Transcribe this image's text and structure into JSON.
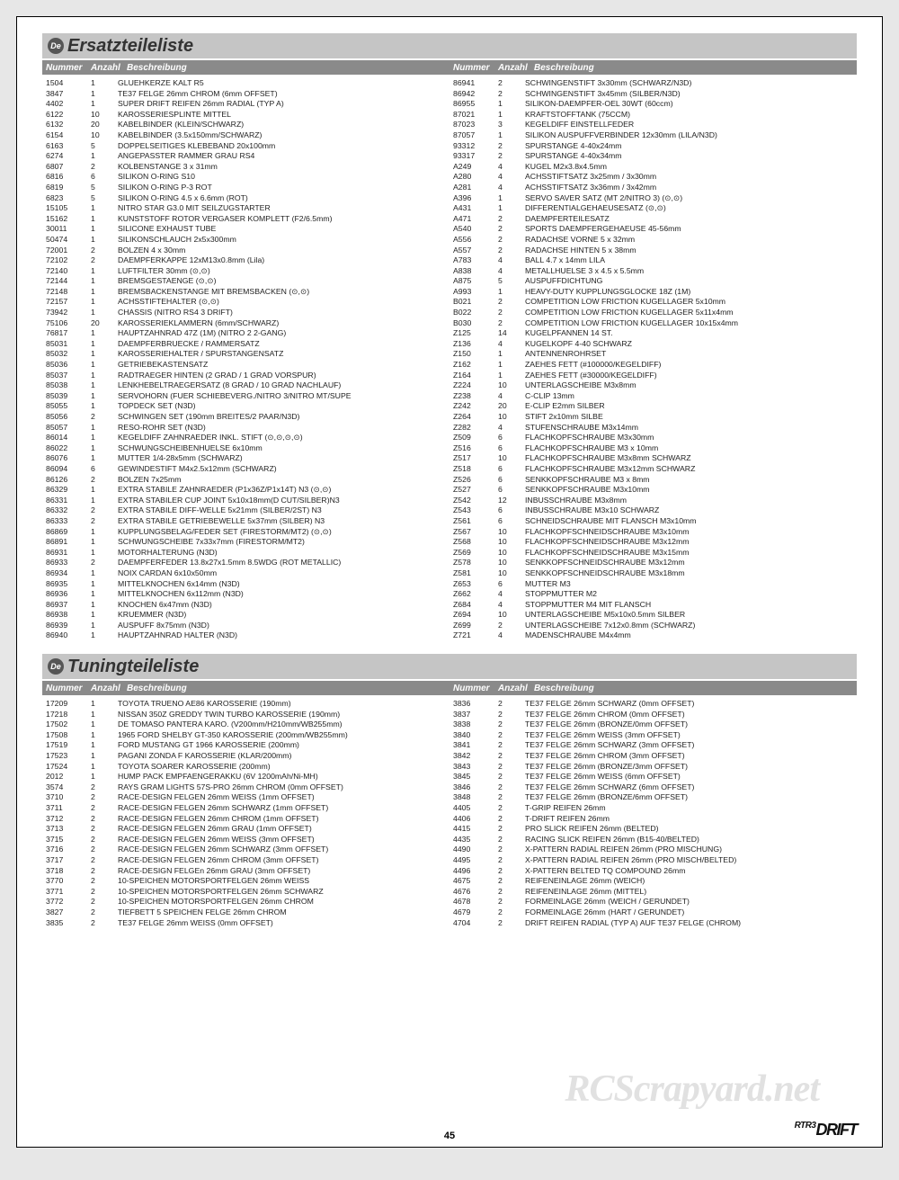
{
  "page_number": "45",
  "watermark": "RCScrapyard.net",
  "logo_small": "RTR3",
  "logo_main": "DRIFT",
  "sections": [
    {
      "badge": "De",
      "title": "Ersatzteileliste",
      "headers": {
        "num": "Nummer",
        "qty": "Anzahl",
        "desc": "Beschreibung"
      },
      "left": [
        [
          "1504",
          "1",
          "GLUEHKERZE KALT R5"
        ],
        [
          "3847",
          "1",
          "TE37 FELGE 26mm CHROM (6mm OFFSET)"
        ],
        [
          "4402",
          "1",
          "SUPER DRIFT REIFEN 26mm RADIAL (TYP A)"
        ],
        [
          "6122",
          "10",
          "KAROSSERIESPLINTE MITTEL"
        ],
        [
          "6132",
          "20",
          "KABELBINDER (KLEIN/SCHWARZ)"
        ],
        [
          "6154",
          "10",
          "KABELBINDER (3.5x150mm/SCHWARZ)"
        ],
        [
          "6163",
          "5",
          "DOPPELSEITIGES KLEBEBAND 20x100mm"
        ],
        [
          "6274",
          "1",
          "ANGEPASSTER RAMMER GRAU RS4"
        ],
        [
          "6807",
          "2",
          "KOLBENSTANGE 3 x 31mm"
        ],
        [
          "6816",
          "6",
          "SILIKON O-RING S10"
        ],
        [
          "6819",
          "5",
          "SILIKON O-RING P-3 ROT"
        ],
        [
          "6823",
          "5",
          "SILIKON O-RING 4.5 x 6.6mm (ROT)"
        ],
        [
          "15105",
          "1",
          "NITRO STAR G3.0 MIT SEILZUGSTARTER"
        ],
        [
          "15162",
          "1",
          "KUNSTSTOFF ROTOR VERGASER KOMPLETT (F2/6.5mm)"
        ],
        [
          "30011",
          "1",
          "SILICONE EXHAUST TUBE"
        ],
        [
          "50474",
          "1",
          "SILIKONSCHLAUCH 2x5x300mm"
        ],
        [
          "72001",
          "2",
          "BOLZEN 4 x 30mm"
        ],
        [
          "72102",
          "2",
          "DAEMPFERKAPPE 12xM13x0.8mm (Lila)"
        ],
        [
          "72140",
          "1",
          "LUFTFILTER 30mm (⊙,⊙)"
        ],
        [
          "72144",
          "1",
          "BREMSGESTAENGE (⊙,⊙)"
        ],
        [
          "72148",
          "1",
          "BREMSBACKENSTANGE MIT BREMSBACKEN (⊙,⊙)"
        ],
        [
          "72157",
          "1",
          "ACHSSTIFTEHALTER (⊙,⊙)"
        ],
        [
          "73942",
          "1",
          "CHASSIS (NITRO RS4 3 DRIFT)"
        ],
        [
          "75106",
          "20",
          "KAROSSERIEKLAMMERN (6mm/SCHWARZ)"
        ],
        [
          "76817",
          "1",
          "HAUPTZAHNRAD 47Z (1M) (NITRO 2 2-GANG)"
        ],
        [
          "85031",
          "1",
          "DAEMPFERBRUECKE / RAMMERSATZ"
        ],
        [
          "85032",
          "1",
          "KAROSSERIEHALTER / SPURSTANGENSATZ"
        ],
        [
          "85036",
          "1",
          "GETRIEBEKASTENSATZ"
        ],
        [
          "85037",
          "1",
          "RADTRAEGER HINTEN (2 GRAD / 1 GRAD VORSPUR)"
        ],
        [
          "85038",
          "1",
          "LENKHEBELTRAEGERSATZ (8 GRAD / 10 GRAD NACHLAUF)"
        ],
        [
          "85039",
          "1",
          "SERVOHORN  (FUER SCHIEBEVERG./NITRO 3/NITRO MT/SUPE"
        ],
        [
          "85055",
          "1",
          "TOPDECK SET (N3D)"
        ],
        [
          "85056",
          "2",
          "SCHWINGEN SET (190mm BREITES/2 PAAR/N3D)"
        ],
        [
          "85057",
          "1",
          "RESO-ROHR SET (N3D)"
        ],
        [
          "86014",
          "1",
          "KEGELDIFF ZAHNRAEDER INKL. STIFT (⊙,⊙,⊙,⊙)"
        ],
        [
          "86022",
          "1",
          "SCHWUNGSCHEIBENHUELSE 6x10mm"
        ],
        [
          "86076",
          "1",
          "MUTTER 1/4-28x5mm (SCHWARZ)"
        ],
        [
          "86094",
          "6",
          "GEWINDESTIFT M4x2.5x12mm (SCHWARZ)"
        ],
        [
          "86126",
          "2",
          "BOLZEN 7x25mm"
        ],
        [
          "86329",
          "1",
          "EXTRA STABILE ZAHNRAEDER (P1x36Z/P1x14T) N3 (⊙,⊙)"
        ],
        [
          "86331",
          "1",
          "EXTRA STABILER CUP JOINT 5x10x18mm(D CUT/SILBER)N3"
        ],
        [
          "86332",
          "2",
          "EXTRA STABILE DIFF-WELLE 5x21mm (SILBER/2ST) N3"
        ],
        [
          "86333",
          "2",
          "EXTRA STABILE GETRIEBEWELLE 5x37mm (SILBER) N3"
        ],
        [
          "86869",
          "1",
          "KUPPLUNGSBELAG/FEDER SET (FIRESTORM/MT2) (⊙,⊙)"
        ],
        [
          "86891",
          "1",
          "SCHWUNGSCHEIBE 7x33x7mm (FIRESTORM/MT2)"
        ],
        [
          "86931",
          "1",
          "MOTORHALTERUNG (N3D)"
        ],
        [
          "86933",
          "2",
          "DAEMPFERFEDER 13.8x27x1.5mm 8.5WDG (ROT METALLIC)"
        ],
        [
          "86934",
          "1",
          "NOIX CARDAN 6x10x50mm"
        ],
        [
          "86935",
          "1",
          "MITTELKNOCHEN 6x14mm (N3D)"
        ],
        [
          "86936",
          "1",
          "MITTELKNOCHEN 6x112mm (N3D)"
        ],
        [
          "86937",
          "1",
          "KNOCHEN 6x47mm (N3D)"
        ],
        [
          "86938",
          "1",
          "KRUEMMER (N3D)"
        ],
        [
          "86939",
          "1",
          "AUSPUFF 8x75mm (N3D)"
        ],
        [
          "86940",
          "1",
          "HAUPTZAHNRAD HALTER (N3D)"
        ]
      ],
      "right": [
        [
          "86941",
          "2",
          "SCHWINGENSTIFT 3x30mm (SCHWARZ/N3D)"
        ],
        [
          "86942",
          "2",
          "SCHWINGENSTIFT 3x45mm (SILBER/N3D)"
        ],
        [
          "86955",
          "1",
          "SILIKON-DAEMPFER-OEL 30WT (60ccm)"
        ],
        [
          "87021",
          "1",
          "KRAFTSTOFFTANK (75CCM)"
        ],
        [
          "87023",
          "3",
          "KEGELDIFF EINSTELLFEDER"
        ],
        [
          "87057",
          "1",
          "SILIKON AUSPUFFVERBINDER 12x30mm (LILA/N3D)"
        ],
        [
          "93312",
          "2",
          "SPURSTANGE 4-40x24mm"
        ],
        [
          "93317",
          "2",
          "SPURSTANGE 4-40x34mm"
        ],
        [
          "A249",
          "4",
          "KUGEL M2x3.8x4.5mm"
        ],
        [
          "A280",
          "4",
          "ACHSSTIFTSATZ 3x25mm / 3x30mm"
        ],
        [
          "A281",
          "4",
          "ACHSSTIFTSATZ 3x36mm / 3x42mm"
        ],
        [
          "A396",
          "1",
          "SERVO SAVER SATZ (MT 2/NITRO 3) (⊙,⊙)"
        ],
        [
          "A431",
          "1",
          "DIFFERENTIALGEHAEUSESATZ (⊙,⊙)"
        ],
        [
          "A471",
          "2",
          "DAEMPFERTEILESATZ"
        ],
        [
          "A540",
          "2",
          "SPORTS DAEMPFERGEHAEUSE 45-56mm"
        ],
        [
          "A556",
          "2",
          "RADACHSE VORNE 5 x 32mm"
        ],
        [
          "A557",
          "2",
          "RADACHSE HINTEN 5 x 38mm"
        ],
        [
          "A783",
          "4",
          "BALL 4.7 x 14mm LILA"
        ],
        [
          "A838",
          "4",
          "METALLHUELSE 3 x 4.5 x 5.5mm"
        ],
        [
          "A875",
          "5",
          "AUSPUFFDICHTUNG"
        ],
        [
          "A993",
          "1",
          "HEAVY-DUTY KUPPLUNGSGLOCKE 18Z (1M)"
        ],
        [
          "B021",
          "2",
          "COMPETITION LOW FRICTION KUGELLAGER 5x10mm"
        ],
        [
          "B022",
          "2",
          "COMPETITION LOW FRICTION KUGELLAGER 5x11x4mm"
        ],
        [
          "B030",
          "2",
          "COMPETITION LOW FRICTION KUGELLAGER 10x15x4mm"
        ],
        [
          "Z125",
          "14",
          "KUGELPFANNEN 14 ST."
        ],
        [
          "Z136",
          "4",
          "KUGELKOPF 4-40 SCHWARZ"
        ],
        [
          "Z150",
          "1",
          "ANTENNENROHRSET"
        ],
        [
          "Z162",
          "1",
          "ZAEHES FETT (#100000/KEGELDIFF)"
        ],
        [
          "Z164",
          "1",
          "ZAEHES FETT (#30000/KEGELDIFF)"
        ],
        [
          "Z224",
          "10",
          "UNTERLAGSCHEIBE M3x8mm"
        ],
        [
          "Z238",
          "4",
          "C-CLIP 13mm"
        ],
        [
          "Z242",
          "20",
          "E-CLIP E2mm SILBER"
        ],
        [
          "Z264",
          "10",
          "STIFT 2x10mm SILBE"
        ],
        [
          "Z282",
          "4",
          "STUFENSCHRAUBE M3x14mm"
        ],
        [
          "Z509",
          "6",
          "FLACHKOPFSCHRAUBE M3x30mm"
        ],
        [
          "Z516",
          "6",
          "FLACHKOPFSCHRAUBE M3 x 10mm"
        ],
        [
          "Z517",
          "10",
          "FLACHKOPFSCHRAUBE M3x8mm SCHWARZ"
        ],
        [
          "Z518",
          "6",
          "FLACHKOPFSCHRAUBE M3x12mm SCHWARZ"
        ],
        [
          "Z526",
          "6",
          "SENKKOPFSCHRAUBE M3 x 8mm"
        ],
        [
          "Z527",
          "6",
          "SENKKOPFSCHRAUBE M3x10mm"
        ],
        [
          "Z542",
          "12",
          "INBUSSCHRAUBE M3x8mm"
        ],
        [
          "Z543",
          "6",
          "INBUSSCHRAUBE M3x10 SCHWARZ"
        ],
        [
          "Z561",
          "6",
          "SCHNEIDSCHRAUBE MIT FLANSCH M3x10mm"
        ],
        [
          "Z567",
          "10",
          "FLACHKOPFSCHNEIDSCHRAUBE M3x10mm"
        ],
        [
          "Z568",
          "10",
          "FLACHKOPFSCHNEIDSCHRAUBE M3x12mm"
        ],
        [
          "Z569",
          "10",
          "FLACHKOPFSCHNEIDSCHRAUBE M3x15mm"
        ],
        [
          "Z578",
          "10",
          "SENKKOPFSCHNEIDSCHRAUBE M3x12mm"
        ],
        [
          "Z581",
          "10",
          "SENKKOPFSCHNEIDSCHRAUBE M3x18mm"
        ],
        [
          "Z653",
          "6",
          "MUTTER M3"
        ],
        [
          "Z662",
          "4",
          "STOPPMUTTER M2"
        ],
        [
          "Z684",
          "4",
          "STOPPMUTTER M4 MIT FLANSCH"
        ],
        [
          "Z694",
          "10",
          "UNTERLAGSCHEIBE M5x10x0.5mm SILBER"
        ],
        [
          "Z699",
          "2",
          "UNTERLAGSCHEIBE 7x12x0.8mm (SCHWARZ)"
        ],
        [
          "Z721",
          "4",
          "MADENSCHRAUBE M4x4mm"
        ]
      ]
    },
    {
      "badge": "De",
      "title": "Tuningteileliste",
      "headers": {
        "num": "Nummer",
        "qty": "Anzahl",
        "desc": "Beschreibung"
      },
      "left": [
        [
          "17209",
          "1",
          "TOYOTA TRUENO AE86 KAROSSERIE (190mm)"
        ],
        [
          "17218",
          "1",
          "NISSAN 350Z GREDDY TWIN TURBO KAROSSERIE (190mm)"
        ],
        [
          "17502",
          "1",
          "DE TOMASO PANTERA KARO. (V200mm/H210mm/WB255mm)"
        ],
        [
          "17508",
          "1",
          "1965 FORD SHELBY GT-350 KAROSSERIE (200mm/WB255mm)"
        ],
        [
          "17519",
          "1",
          "FORD MUSTANG GT 1966 KAROSSERIE (200mm)"
        ],
        [
          "17523",
          "1",
          "PAGANI ZONDA F KAROSSERIE (KLAR/200mm)"
        ],
        [
          "17524",
          "1",
          "TOYOTA SOARER KAROSSERIE (200mm)"
        ],
        [
          "2012",
          "1",
          "HUMP PACK EMPFAENGERAKKU (6V 1200mAh/Ni-MH)"
        ],
        [
          "3574",
          "2",
          "RAYS GRAM LIGHTS 57S-PRO 26mm CHROM (0mm OFFSET)"
        ],
        [
          "3710",
          "2",
          "RACE-DESIGN FELGEN 26mm WEISS (1mm OFFSET)"
        ],
        [
          "3711",
          "2",
          "RACE-DESIGN FELGEN 26mm SCHWARZ (1mm OFFSET)"
        ],
        [
          "3712",
          "2",
          "RACE-DESIGN FELGEN 26mm CHROM (1mm OFFSET)"
        ],
        [
          "3713",
          "2",
          "RACE-DESIGN FELGEN 26mm GRAU (1mm OFFSET)"
        ],
        [
          "3715",
          "2",
          "RACE-DESIGN FELGEN 26mm WEISS (3mm OFFSET)"
        ],
        [
          "3716",
          "2",
          "RACE-DESIGN FELGEN 26mm SCHWARZ (3mm OFFSET)"
        ],
        [
          "3717",
          "2",
          "RACE-DESIGN FELGEN 26mm CHROM (3mm OFFSET)"
        ],
        [
          "3718",
          "2",
          "RACE-DESIGN FELGEn 26mm GRAU (3mm OFFSET)"
        ],
        [
          "3770",
          "2",
          "10-SPEICHEN MOTORSPORTFELGEN 26mm WEISS"
        ],
        [
          "3771",
          "2",
          "10-SPEICHEN MOTORSPORTFELGEN 26mm SCHWARZ"
        ],
        [
          "3772",
          "2",
          "10-SPEICHEN MOTORSPORTFELGEN 26mm CHROM"
        ],
        [
          "3827",
          "2",
          "TIEFBETT 5 SPEICHEN FELGE 26mm CHROM"
        ],
        [
          "3835",
          "2",
          "TE37 FELGE 26mm WEISS (0mm OFFSET)"
        ]
      ],
      "right": [
        [
          "3836",
          "2",
          "TE37 FELGE 26mm SCHWARZ (0mm OFFSET)"
        ],
        [
          "3837",
          "2",
          "TE37 FELGE 26mm CHROM (0mm OFFSET)"
        ],
        [
          "3838",
          "2",
          "TE37 FELGE 26mm (BRONZE/0mm OFFSET)"
        ],
        [
          "3840",
          "2",
          "TE37 FELGE 26mm WEISS (3mm OFFSET)"
        ],
        [
          "3841",
          "2",
          "TE37 FELGE 26mm SCHWARZ (3mm OFFSET)"
        ],
        [
          "3842",
          "2",
          "TE37 FELGE 26mm CHROM (3mm OFFSET)"
        ],
        [
          "3843",
          "2",
          "TE37 FELGE 26mm (BRONZE/3mm OFFSET)"
        ],
        [
          "3845",
          "2",
          "TE37 FELGE 26mm WEISS (6mm OFFSET)"
        ],
        [
          "3846",
          "2",
          "TE37 FELGE 26mm SCHWARZ (6mm OFFSET)"
        ],
        [
          "3848",
          "2",
          "TE37 FELGE 26mm (BRONZE/6mm OFFSET)"
        ],
        [
          "4405",
          "2",
          "T-GRIP REIFEN 26mm"
        ],
        [
          "4406",
          "2",
          "T-DRIFT REIFEN 26mm"
        ],
        [
          "4415",
          "2",
          "PRO SLICK REIFEN 26mm (BELTED)"
        ],
        [
          "4435",
          "2",
          "RACING SLICK REIFEN 26mm (B15-40/BELTED)"
        ],
        [
          "4490",
          "2",
          "X-PATTERN RADIAL REIFEN 26mm (PRO MISCHUNG)"
        ],
        [
          "4495",
          "2",
          "X-PATTERN RADIAL REIFEN 26mm (PRO MISCH/BELTED)"
        ],
        [
          "4496",
          "2",
          "X-PATTERN BELTED TQ COMPOUND 26mm"
        ],
        [
          "4675",
          "2",
          "REIFENEINLAGE 26mm (WEICH)"
        ],
        [
          "4676",
          "2",
          "REIFENEINLAGE 26mm (MITTEL)"
        ],
        [
          "4678",
          "2",
          "FORMEINLAGE 26mm (WEICH / GERUNDET)"
        ],
        [
          "4679",
          "2",
          "FORMEINLAGE 26mm (HART / GERUNDET)"
        ],
        [
          "4704",
          "2",
          "DRIFT REIFEN RADIAL (TYP A) AUF TE37 FELGE (CHROM)"
        ]
      ]
    }
  ]
}
